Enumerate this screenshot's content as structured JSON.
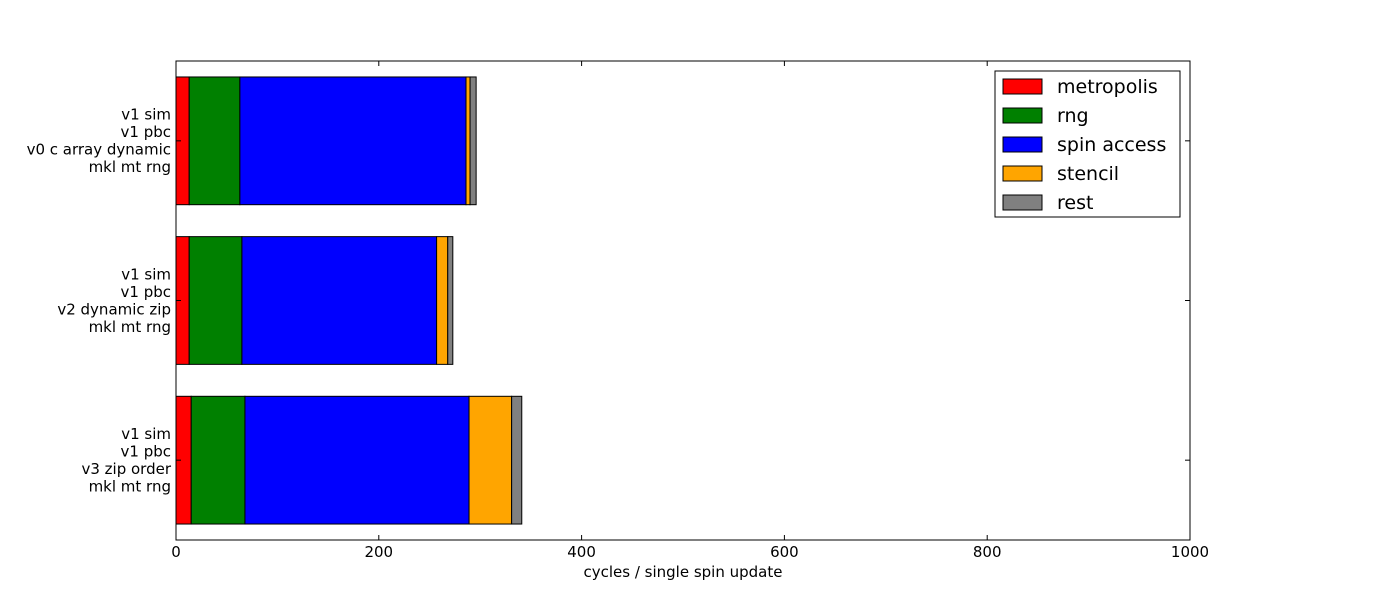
{
  "chart_data": {
    "type": "bar",
    "orientation": "horizontal",
    "stacked": true,
    "xlabel": "cycles / single spin update",
    "xlim": [
      0,
      1000
    ],
    "x_ticks": [
      "0",
      "200",
      "400",
      "600",
      "800",
      "1000"
    ],
    "grid": false,
    "legend_position": "top-right",
    "categories": [
      [
        "v1 sim",
        "v1 pbc",
        "v0 c array dynamic",
        "mkl mt rng"
      ],
      [
        "v1 sim",
        "v1 pbc",
        "v2 dynamic zip",
        "mkl mt rng"
      ],
      [
        "v1 sim",
        "v1 pbc",
        "v3 zip order",
        "mkl mt rng"
      ]
    ],
    "series": [
      {
        "name": "metropolis",
        "color": "#ff0000",
        "values": [
          13,
          13,
          15
        ]
      },
      {
        "name": "rng",
        "color": "#008000",
        "values": [
          50,
          52,
          53
        ]
      },
      {
        "name": "spin access",
        "color": "#0000ff",
        "values": [
          223,
          192,
          221
        ]
      },
      {
        "name": "stencil",
        "color": "#ffa500",
        "values": [
          4,
          11,
          42
        ]
      },
      {
        "name": "rest",
        "color": "#808080",
        "values": [
          6,
          5,
          10
        ]
      }
    ]
  }
}
